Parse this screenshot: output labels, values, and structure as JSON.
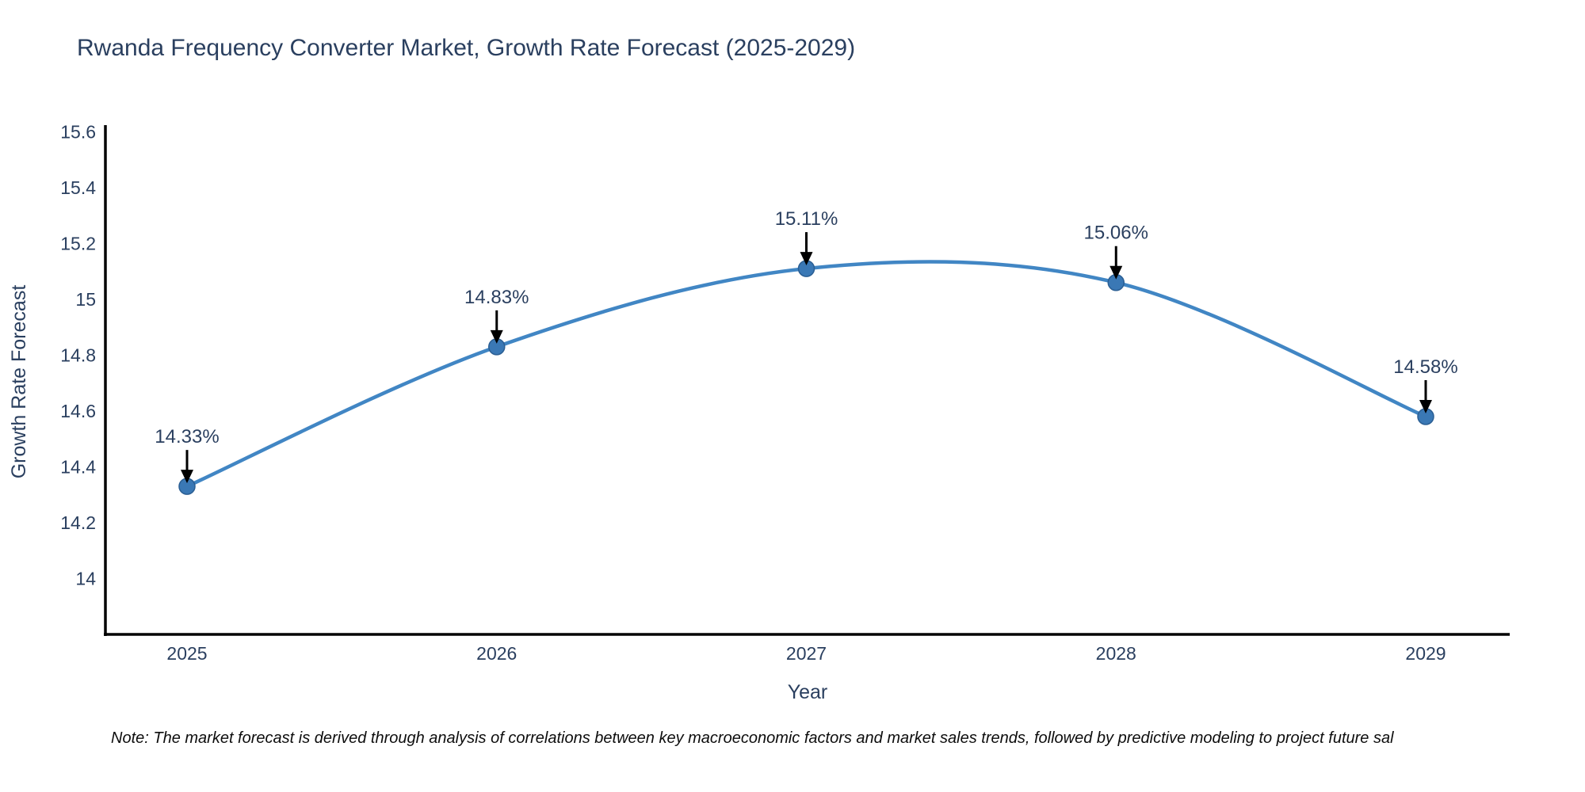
{
  "page": {
    "background": "#ffffff"
  },
  "chart_data": {
    "type": "line",
    "title": "Rwanda Frequency Converter Market, Growth Rate Forecast (2025-2029)",
    "xlabel": "Year",
    "ylabel": "Growth Rate Forecast",
    "categories": [
      "2025",
      "2026",
      "2027",
      "2028",
      "2029"
    ],
    "series": [
      {
        "name": "Growth Rate Forecast",
        "values": [
          14.33,
          14.83,
          15.11,
          15.06,
          14.58
        ]
      }
    ],
    "point_labels": [
      "14.33%",
      "14.83%",
      "15.11%",
      "15.06%",
      "14.58%"
    ],
    "ytick_labels": [
      "14",
      "14.2",
      "14.4",
      "14.6",
      "14.8",
      "15",
      "15.2",
      "15.4",
      "15.6"
    ],
    "ytick_values": [
      14,
      14.2,
      14.4,
      14.6,
      14.8,
      15,
      15.2,
      15.4,
      15.6
    ],
    "ylim": [
      13.8,
      15.618
    ],
    "grid": false,
    "legend_position": "none",
    "line_shape": "spline",
    "annotation_style": "down-arrow",
    "colors": {
      "line": "#4186c4",
      "marker": "#3a78b5",
      "marker_edge": "#2b5f94",
      "axis": "#000000",
      "text": "#2a3f5f",
      "annotation_arrow": "#000000"
    }
  },
  "note": {
    "text": "Note: The market forecast is derived through analysis of correlations between key macroeconomic factors and market sales trends, followed by predictive modeling to project future sal"
  }
}
